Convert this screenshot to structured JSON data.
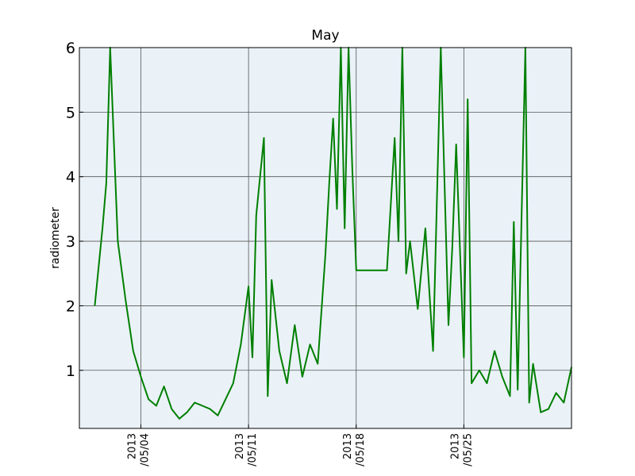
{
  "chart_data": {
    "type": "line",
    "title": "May",
    "xlabel": "",
    "ylabel": "radiometer",
    "ylim": [
      0.1,
      6
    ],
    "xlim": [
      "2013-04-30",
      "2013-06-01"
    ],
    "yticks": [
      {
        "value": 1,
        "label": "1"
      },
      {
        "value": 2,
        "label": "2"
      },
      {
        "value": 3,
        "label": "3"
      },
      {
        "value": 4,
        "label": "4"
      },
      {
        "value": 5,
        "label": "5"
      },
      {
        "value": 6,
        "label": "6"
      }
    ],
    "xticks": [
      {
        "date": "2013-05-04",
        "line1": "2013",
        "line2": "/05/04"
      },
      {
        "date": "2013-05-11",
        "line1": "2013",
        "line2": "/05/11"
      },
      {
        "date": "2013-05-18",
        "line1": "2013",
        "line2": "/05/18"
      },
      {
        "date": "2013-05-25",
        "line1": "2013",
        "line2": "/05/25"
      }
    ],
    "grid": true,
    "background_color": "#eaf2f8",
    "series": [
      {
        "color": "#007f00",
        "x": [
          "2013-05-01",
          "2013-05-01T12:00",
          "2013-05-01T18:00",
          "2013-05-02",
          "2013-05-02T12:00",
          "2013-05-03",
          "2013-05-03T12:00",
          "2013-05-04",
          "2013-05-04T12:00",
          "2013-05-05",
          "2013-05-05T12:00",
          "2013-05-06",
          "2013-05-06T12:00",
          "2013-05-07",
          "2013-05-07T12:00",
          "2013-05-08",
          "2013-05-08T12:00",
          "2013-05-09",
          "2013-05-09T12:00",
          "2013-05-10",
          "2013-05-10T12:00",
          "2013-05-11",
          "2013-05-11T06:00",
          "2013-05-11T12:00",
          "2013-05-12",
          "2013-05-12T06:00",
          "2013-05-12T12:00",
          "2013-05-13",
          "2013-05-13T12:00",
          "2013-05-14",
          "2013-05-14T12:00",
          "2013-05-15",
          "2013-05-15T12:00",
          "2013-05-16",
          "2013-05-16T06:00",
          "2013-05-16T12:00",
          "2013-05-16T18:00",
          "2013-05-17",
          "2013-05-17T06:00",
          "2013-05-17T12:00",
          "2013-05-17T18:00",
          "2013-05-18",
          "2013-05-19",
          "2013-05-20",
          "2013-05-20T12:00",
          "2013-05-20T18:00",
          "2013-05-21",
          "2013-05-21T06:00",
          "2013-05-21T12:00",
          "2013-05-22",
          "2013-05-22T12:00",
          "2013-05-23",
          "2013-05-23T12:00",
          "2013-05-24",
          "2013-05-24T06:00",
          "2013-05-24T12:00",
          "2013-05-25",
          "2013-05-25T06:00",
          "2013-05-25T12:00",
          "2013-05-26",
          "2013-05-26T12:00",
          "2013-05-27",
          "2013-05-27T12:00",
          "2013-05-28",
          "2013-05-28T06:00",
          "2013-05-28T12:00",
          "2013-05-29",
          "2013-05-29T06:00",
          "2013-05-29T12:00",
          "2013-05-30",
          "2013-05-30T12:00",
          "2013-05-31",
          "2013-05-31T12:00",
          "2013-06-01"
        ],
        "y": [
          2.0,
          3.2,
          3.9,
          6.0,
          3.0,
          2.1,
          1.3,
          0.9,
          0.55,
          0.45,
          0.75,
          0.4,
          0.25,
          0.35,
          0.5,
          0.45,
          0.4,
          0.3,
          0.55,
          0.8,
          1.4,
          2.3,
          1.2,
          3.4,
          4.6,
          0.6,
          2.4,
          1.3,
          0.8,
          1.7,
          0.9,
          1.4,
          1.1,
          2.8,
          3.9,
          4.9,
          3.5,
          6.0,
          3.2,
          6.0,
          4.1,
          2.55,
          2.55,
          2.55,
          4.6,
          3.0,
          6.0,
          2.5,
          3.0,
          1.95,
          3.2,
          1.3,
          6.0,
          1.7,
          2.9,
          4.5,
          1.2,
          5.2,
          0.8,
          1.0,
          0.8,
          1.3,
          0.9,
          0.6,
          3.3,
          0.7,
          6.0,
          0.5,
          1.1,
          0.35,
          0.4,
          0.65,
          0.5,
          1.05
        ]
      }
    ]
  }
}
